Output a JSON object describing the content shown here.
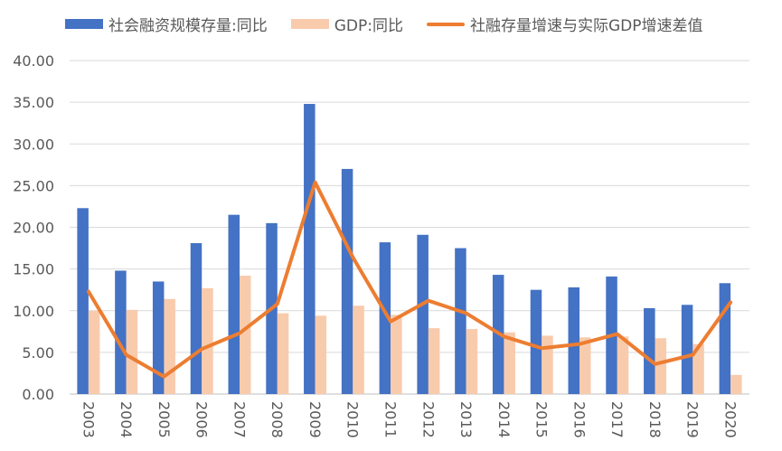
{
  "chart_data": {
    "type": "bar",
    "title": "",
    "xlabel": "",
    "ylabel": "",
    "ylim": [
      0,
      40
    ],
    "yticks": [
      "0.00",
      "5.00",
      "10.00",
      "15.00",
      "20.00",
      "25.00",
      "30.00",
      "35.00",
      "40.00"
    ],
    "categories": [
      "2003",
      "2004",
      "2005",
      "2006",
      "2007",
      "2008",
      "2009",
      "2010",
      "2011",
      "2012",
      "2013",
      "2014",
      "2015",
      "2016",
      "2017",
      "2018",
      "2019",
      "2020"
    ],
    "series": [
      {
        "name": "社会融资规模存量:同比",
        "type": "bar",
        "color": "#4472C4",
        "values": [
          22.3,
          14.8,
          13.5,
          18.1,
          21.5,
          20.5,
          34.8,
          27.0,
          18.2,
          19.1,
          17.5,
          14.3,
          12.5,
          12.8,
          14.1,
          10.3,
          10.7,
          13.3
        ]
      },
      {
        "name": "GDP:同比",
        "type": "bar",
        "color": "#F8CBAD",
        "values": [
          10.0,
          10.1,
          11.4,
          12.7,
          14.2,
          9.7,
          9.4,
          10.6,
          9.5,
          7.9,
          7.8,
          7.4,
          7.0,
          6.8,
          6.9,
          6.7,
          6.0,
          2.3
        ]
      },
      {
        "name": "社融存量增速与实际GDP增速差值",
        "type": "line",
        "color": "#ED7D31",
        "values": [
          12.3,
          4.7,
          2.1,
          5.4,
          7.3,
          10.8,
          25.4,
          16.4,
          8.7,
          11.2,
          9.7,
          6.9,
          5.5,
          6.0,
          7.2,
          3.6,
          4.7,
          11.0
        ]
      }
    ],
    "grid": true,
    "legend_position": "top"
  }
}
